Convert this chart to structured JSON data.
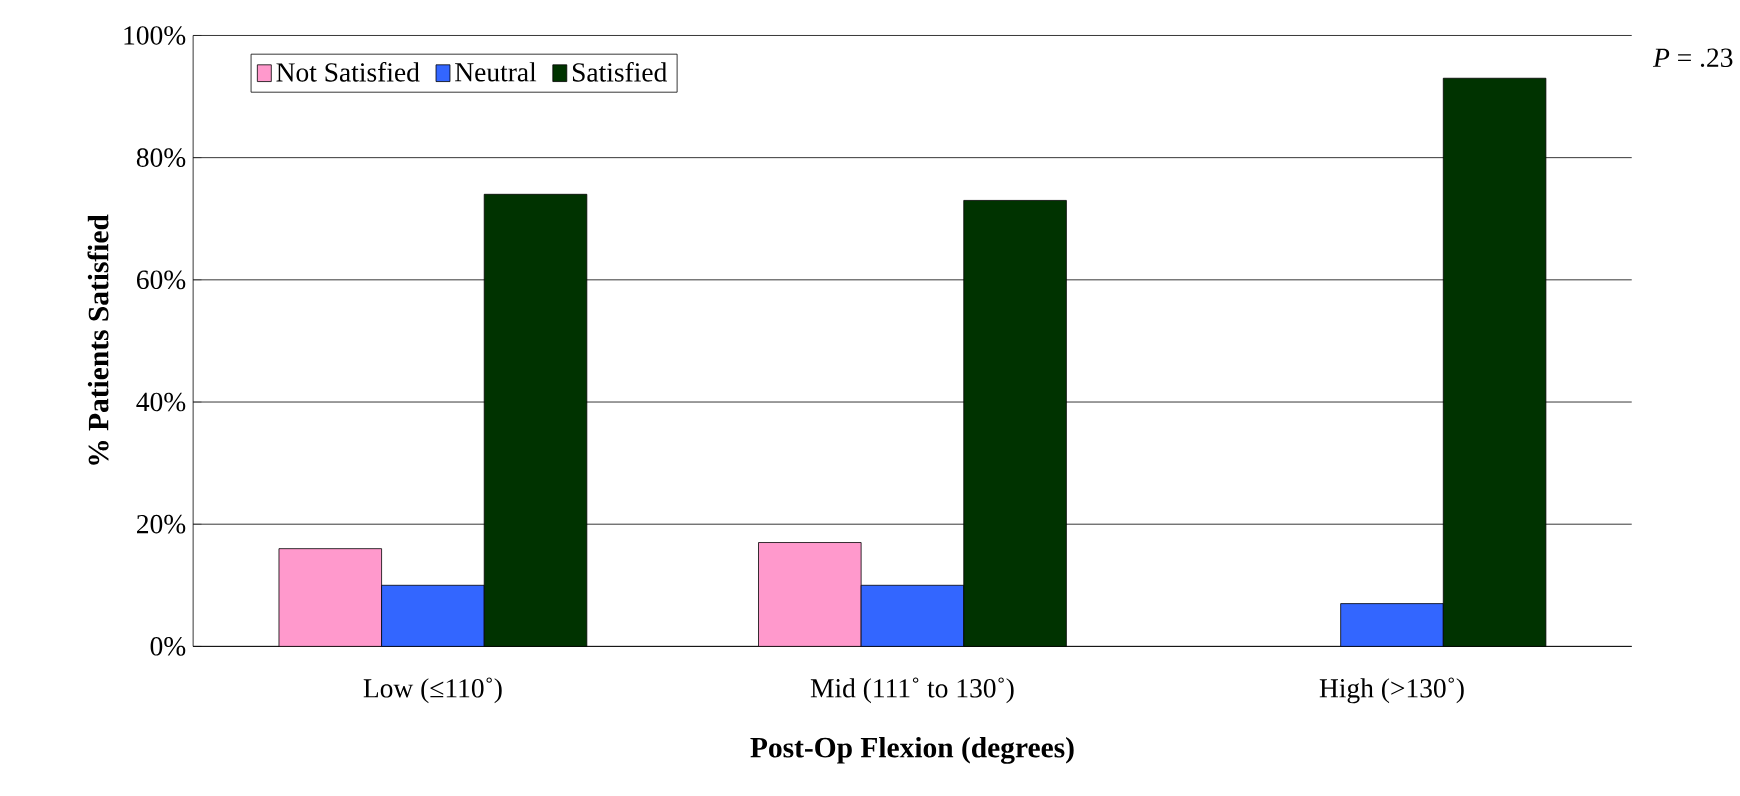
{
  "chart_data": {
    "type": "bar",
    "xlabel": "Post-Op Flexion (degrees)",
    "ylabel": "% Patients Satisfied",
    "categories": [
      "Low (≤110˚)",
      "Mid (111˚ to 130˚)",
      "High (>130˚)"
    ],
    "series": [
      {
        "name": "Not Satisfied",
        "color": "#ff99cc",
        "values": [
          16,
          17,
          null
        ]
      },
      {
        "name": "Neutral",
        "color": "#3366ff",
        "values": [
          10,
          10,
          7
        ]
      },
      {
        "name": "Satisfied",
        "color": "#003300",
        "values": [
          74,
          73,
          93
        ]
      }
    ],
    "ylim": [
      0,
      100
    ],
    "yticks": [
      {
        "value": 0,
        "label": "0%"
      },
      {
        "value": 20,
        "label": "20%"
      },
      {
        "value": 40,
        "label": "40%"
      },
      {
        "value": 60,
        "label": "60%"
      },
      {
        "value": 80,
        "label": "80%"
      },
      {
        "value": 100,
        "label": "100%"
      }
    ],
    "grid": "y",
    "legend": "top left",
    "annotations": [
      "*P* = .23"
    ]
  }
}
